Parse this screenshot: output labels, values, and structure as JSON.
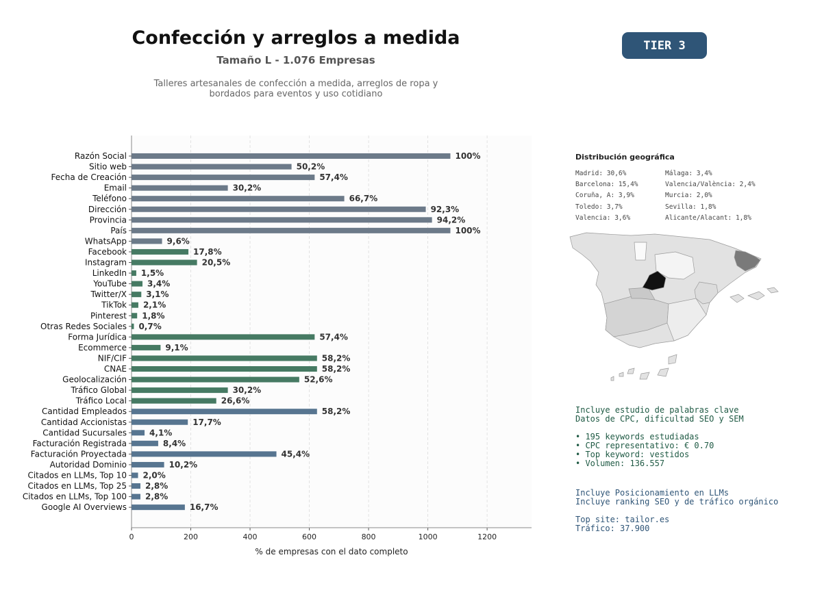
{
  "header": {
    "title": "Confección y arreglos a medida",
    "subtitle": "Tamaño L - 1.076 Empresas",
    "description_line1": "Talleres artesanales de confección a medida, arreglos de ropa y",
    "description_line2": "bordados para eventos y uso cotidiano",
    "tier": "TIER 3"
  },
  "colors": {
    "base_fields": "#6c7a89",
    "social_fields": "#467a63",
    "business_fields": "#577590",
    "map_highlight": "#111111",
    "map_secondary": "#7a7a7a"
  },
  "chart_data": {
    "type": "bar",
    "orientation": "horizontal",
    "xlabel": "% de empresas con el dato completo",
    "xlim": [
      0,
      1350
    ],
    "xticks": [
      0,
      200,
      400,
      600,
      800,
      1000,
      1200
    ],
    "grid": "vertical dashed",
    "categories": [
      "Razón Social",
      "Sitio web",
      "Fecha de Creación",
      "Email",
      "Teléfono",
      "Dirección",
      "Provincia",
      "País",
      "WhatsApp",
      "Facebook",
      "Instagram",
      "LinkedIn",
      "YouTube",
      "Twitter/X",
      "TikTok",
      "Pinterest",
      "Otras Redes Sociales",
      "Forma Jurídica",
      "Ecommerce",
      "NIF/CIF",
      "CNAE",
      "Geolocalización",
      "Tráfico Global",
      "Tráfico Local",
      "Cantidad Empleados",
      "Cantidad Accionistas",
      "Cantidad Sucursales",
      "Facturación Registrada",
      "Facturación Proyectada",
      "Autoridad Dominio",
      "Citados en LLMs, Top 10",
      "Citados en LLMs, Top 25",
      "Citados en LLMs, Top 100",
      "Google AI Overviews"
    ],
    "values": [
      1076,
      540,
      618,
      325,
      718,
      993,
      1014,
      1076,
      103,
      192,
      221,
      16,
      37,
      33,
      23,
      19,
      8,
      618,
      98,
      626,
      626,
      566,
      325,
      286,
      626,
      190,
      44,
      90,
      489,
      110,
      22,
      30,
      30,
      180
    ],
    "labels": [
      "100%",
      "50,2%",
      "57,4%",
      "30,2%",
      "66,7%",
      "92,3%",
      "94,2%",
      "100%",
      "9,6%",
      "17,8%",
      "20,5%",
      "1,5%",
      "3,4%",
      "3,1%",
      "2,1%",
      "1,8%",
      "0,7%",
      "57,4%",
      "9,1%",
      "58,2%",
      "58,2%",
      "52,6%",
      "30,2%",
      "26,6%",
      "58,2%",
      "17,7%",
      "4,1%",
      "8,4%",
      "45,4%",
      "10,2%",
      "2,0%",
      "2,8%",
      "2,8%",
      "16,7%"
    ],
    "groups": [
      "base",
      "base",
      "base",
      "base",
      "base",
      "base",
      "base",
      "base",
      "base",
      "social",
      "social",
      "social",
      "social",
      "social",
      "social",
      "social",
      "social",
      "social",
      "social",
      "social",
      "social",
      "social",
      "social",
      "social",
      "business",
      "business",
      "business",
      "business",
      "business",
      "business",
      "business",
      "business",
      "business",
      "business"
    ]
  },
  "geo": {
    "title": "Distribución geográfica",
    "col1": [
      "Madrid: 30,6%",
      "Barcelona: 15,4%",
      "Coruña, A: 3,9%",
      "Toledo: 3,7%",
      "Valencia: 3,6%"
    ],
    "col2": [
      "Málaga: 3,4%",
      "Valencia/València: 2,4%",
      "Murcia: 2,0%",
      "Sevilla: 1,8%",
      "Alicante/Alacant: 1,8%"
    ]
  },
  "keywords": {
    "line1": "Incluye estudio de palabras clave",
    "line2": "Datos de CPC, dificultad SEO y SEM",
    "bullet1": "• 195 keywords estudiadas",
    "bullet2": "• CPC representativo: € 0.70",
    "bullet3": "• Top keyword: vestidos",
    "bullet4": "• Volumen: 136.557"
  },
  "llm": {
    "line1": "Incluye Posicionamiento en LLMs",
    "line2": "Incluye ranking SEO y de tráfico orgánico",
    "top_site": "Top site: tailor.es",
    "traffic": "Tráfico: 37.900"
  }
}
